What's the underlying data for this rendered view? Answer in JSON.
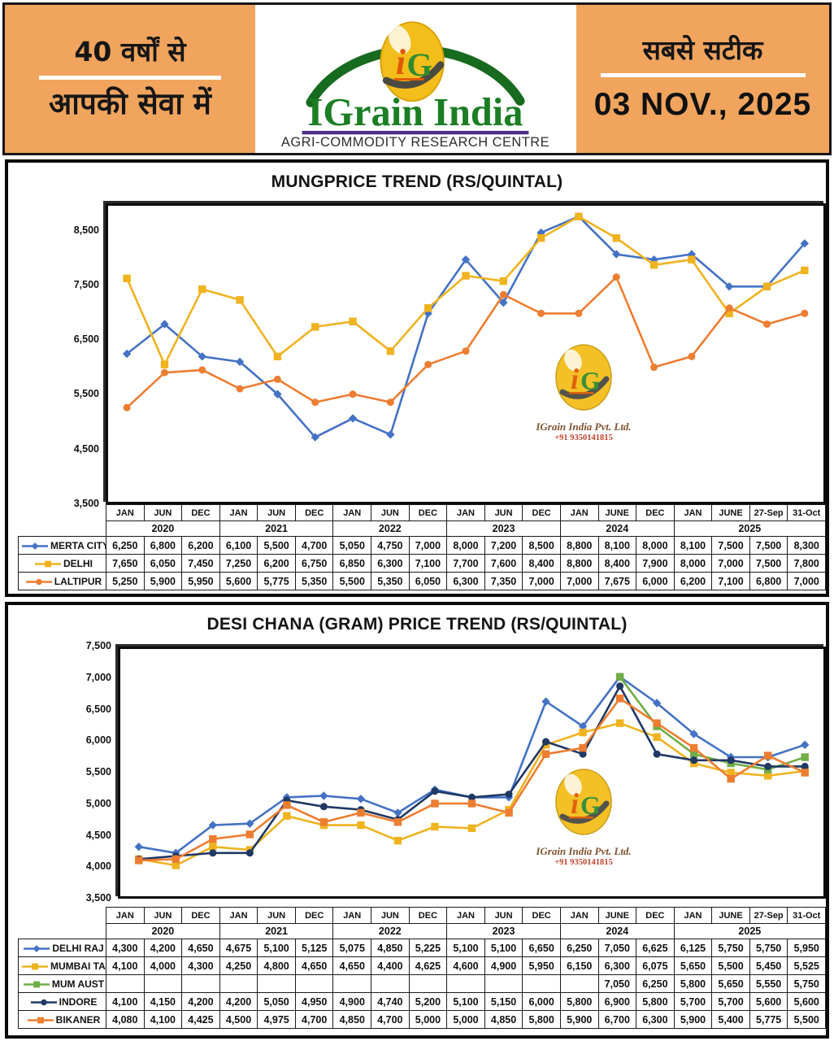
{
  "header": {
    "left_line1": "40 वर्षों से",
    "left_line2": "आपकी सेवा में",
    "brand_name": "IGrain India",
    "brand_tagline": "AGRI-COMMODITY RESEARCH CENTRE",
    "monogram_i": "i",
    "monogram_g": "G",
    "right_line1": "सबसे सटीक",
    "date": "03 NOV., 2025",
    "colors": {
      "band_orange": "#F0A45E",
      "brand_green": "#1B7E23",
      "underline_purple": "#4B2E83"
    }
  },
  "watermark": {
    "company": "IGrain India Pvt. Ltd.",
    "phone": "+91 9350141815"
  },
  "periods": {
    "months": [
      "JAN",
      "JUN",
      "DEC",
      "JAN",
      "JUN",
      "DEC",
      "JAN",
      "JUN",
      "DEC",
      "JAN",
      "JUN",
      "DEC",
      "JAN",
      "JUNE",
      "DEC",
      "JAN",
      "JUNE",
      "27-Sep",
      "31-Oct"
    ],
    "year_groups": [
      {
        "label": "2020",
        "span": 3
      },
      {
        "label": "2021",
        "span": 3
      },
      {
        "label": "2022",
        "span": 3
      },
      {
        "label": "2023",
        "span": 3
      },
      {
        "label": "2024",
        "span": 3
      },
      {
        "label": "2025",
        "span": 4
      }
    ]
  },
  "chart_data": [
    {
      "type": "line",
      "title": "MUNGPRICE TREND (RS/QUINTAL)",
      "xlabel": "",
      "ylabel": "",
      "ylim": [
        3500,
        9000
      ],
      "yticks": [
        8500,
        7500,
        6500,
        5500,
        4500,
        3500
      ],
      "grid": false,
      "legend_position": "table-left",
      "categories": [
        "JAN 2020",
        "JUN 2020",
        "DEC 2020",
        "JAN 2021",
        "JUN 2021",
        "DEC 2021",
        "JAN 2022",
        "JUN 2022",
        "DEC 2022",
        "JAN 2023",
        "JUN 2023",
        "DEC 2023",
        "JAN 2024",
        "JUNE 2024",
        "DEC 2024",
        "JAN 2025",
        "JUNE 2025",
        "27-Sep 2025",
        "31-Oct 2025"
      ],
      "series": [
        {
          "name": "MERTA CITY",
          "color": "#4472C4",
          "marker": "diamond",
          "values": [
            6250,
            6800,
            6200,
            6100,
            5500,
            4700,
            5050,
            4750,
            7000,
            8000,
            7200,
            8500,
            8800,
            8100,
            8000,
            8100,
            7500,
            7500,
            8300
          ]
        },
        {
          "name": "DELHI",
          "color": "#EFB31F",
          "marker": "square",
          "values": [
            7650,
            6050,
            7450,
            7250,
            6200,
            6750,
            6850,
            6300,
            7100,
            7700,
            7600,
            8400,
            8800,
            8400,
            7900,
            8000,
            7000,
            7500,
            7800
          ]
        },
        {
          "name": "LALTIPUR",
          "color": "#ED7D31",
          "marker": "circle",
          "values": [
            5250,
            5900,
            5950,
            5600,
            5775,
            5350,
            5500,
            5350,
            6050,
            6300,
            7350,
            7000,
            7000,
            7675,
            6000,
            6200,
            7100,
            6800,
            7000
          ]
        }
      ]
    },
    {
      "type": "line",
      "title": "DESI CHANA (GRAM) PRICE TREND (RS/QUINTAL)",
      "xlabel": "",
      "ylabel": "",
      "ylim": [
        3500,
        7500
      ],
      "yticks": [
        7500,
        7000,
        6500,
        6000,
        5500,
        5000,
        4500,
        4000,
        3500
      ],
      "grid": false,
      "legend_position": "table-left",
      "categories": [
        "JAN 2020",
        "JUN 2020",
        "DEC 2020",
        "JAN 2021",
        "JUN 2021",
        "DEC 2021",
        "JAN 2022",
        "JUN 2022",
        "DEC 2022",
        "JAN 2023",
        "JUN 2023",
        "DEC 2023",
        "JAN 2024",
        "JUNE 2024",
        "DEC 2024",
        "JAN 2025",
        "JUNE 2025",
        "27-Sep 2025",
        "31-Oct 2025"
      ],
      "series": [
        {
          "name": "DELHI RAJ",
          "color": "#4472C4",
          "marker": "diamond",
          "values": [
            4300,
            4200,
            4650,
            4675,
            5100,
            5125,
            5075,
            4850,
            5225,
            5100,
            5100,
            6650,
            6250,
            7050,
            6625,
            6125,
            5750,
            5750,
            5950
          ]
        },
        {
          "name": "MUMBAI TAN",
          "color": "#EFB31F",
          "marker": "square",
          "values": [
            4100,
            4000,
            4300,
            4250,
            4800,
            4650,
            4650,
            4400,
            4625,
            4600,
            4900,
            5950,
            6150,
            6300,
            6075,
            5650,
            5500,
            5450,
            5525
          ]
        },
        {
          "name": "MUM AUST",
          "color": "#70AD47",
          "marker": "square",
          "values": [
            null,
            null,
            null,
            null,
            null,
            null,
            null,
            null,
            null,
            null,
            null,
            null,
            null,
            7050,
            6250,
            5800,
            5650,
            5550,
            5750
          ]
        },
        {
          "name": "INDORE",
          "color": "#1F3864",
          "marker": "circle",
          "values": [
            4100,
            4150,
            4200,
            4200,
            5050,
            4950,
            4900,
            4740,
            5200,
            5100,
            5150,
            6000,
            5800,
            6900,
            5800,
            5700,
            5700,
            5600,
            5600
          ]
        },
        {
          "name": "BIKANER",
          "color": "#ED7D31",
          "marker": "square",
          "values": [
            4080,
            4100,
            4425,
            4500,
            4975,
            4700,
            4850,
            4700,
            5000,
            5000,
            4850,
            5800,
            5900,
            6700,
            6300,
            5900,
            5400,
            5775,
            5500
          ]
        }
      ]
    }
  ]
}
